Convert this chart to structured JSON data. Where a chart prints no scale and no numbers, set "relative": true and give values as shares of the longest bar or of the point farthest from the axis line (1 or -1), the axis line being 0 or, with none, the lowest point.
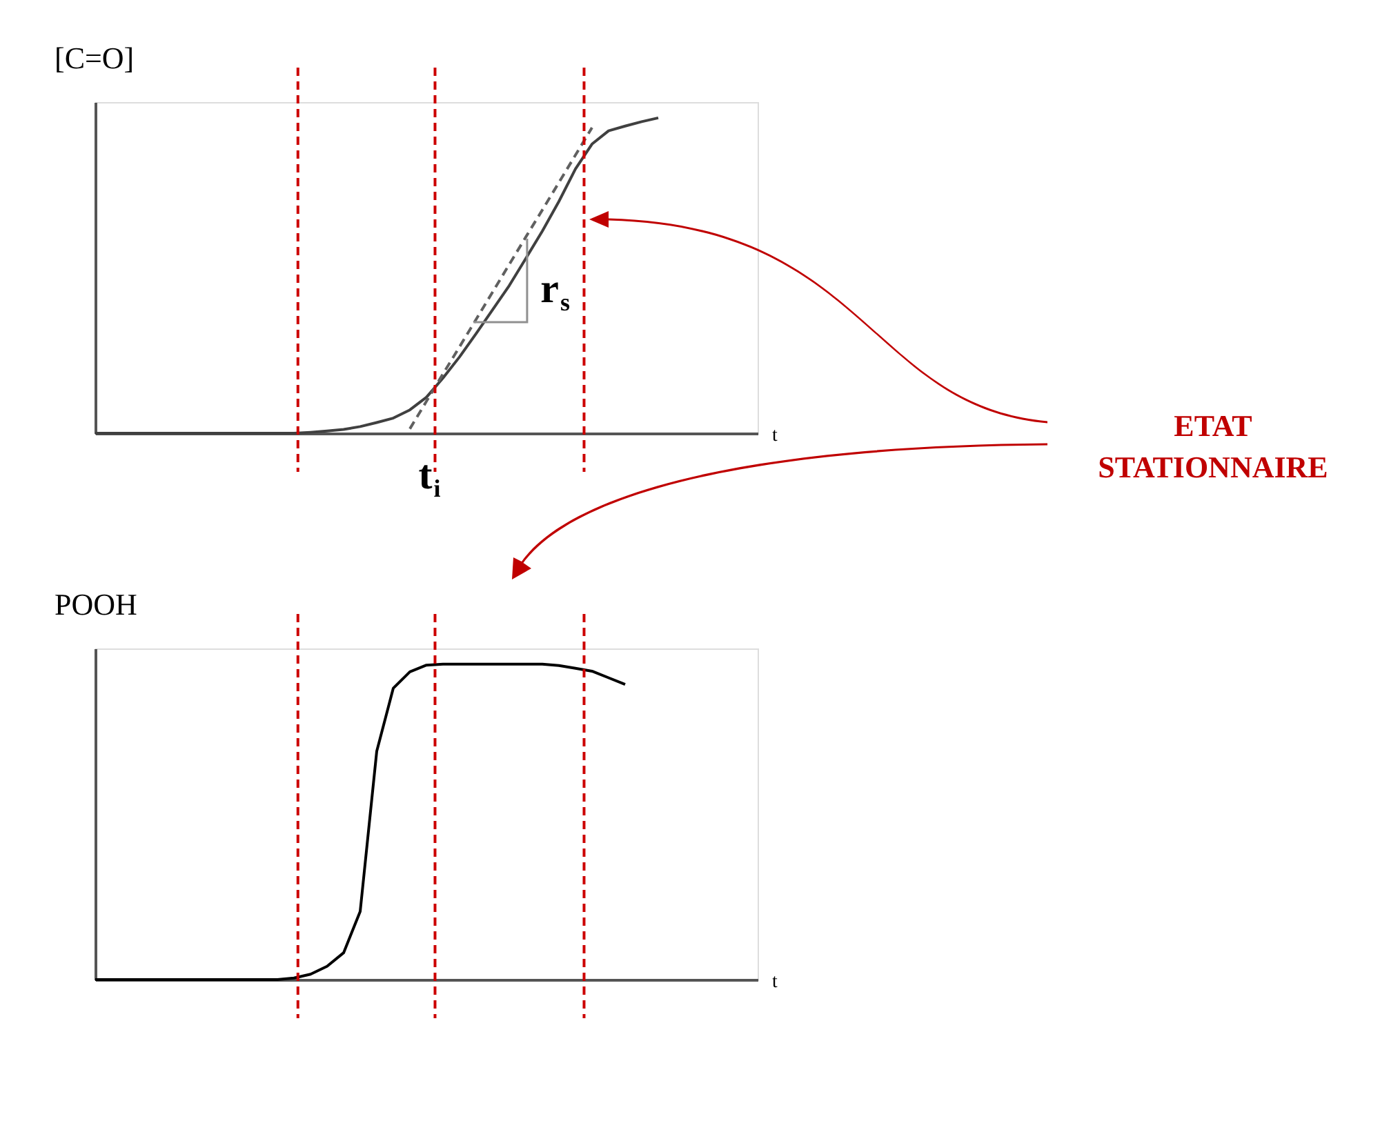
{
  "chart_data": [
    {
      "type": "line",
      "relative": true,
      "ylabel": "[C=O]",
      "xlabel": "t",
      "tick_labels": false,
      "categories": [
        null,
        null,
        null,
        null,
        null,
        null,
        null,
        null,
        null,
        null,
        null,
        null,
        null,
        null,
        null,
        null,
        null,
        null,
        null,
        null,
        null,
        null,
        null,
        null,
        null,
        null,
        null,
        null,
        null,
        null,
        null,
        null,
        null,
        null,
        null,
        null,
        null,
        null,
        null,
        null,
        null
      ],
      "series": [
        {
          "color": "#404040",
          "values": [
            0,
            0,
            0,
            0,
            0,
            0,
            0,
            0,
            0,
            0,
            0,
            0,
            0,
            0.003,
            0.007,
            0.012,
            0.021,
            0.034,
            0.048,
            0.074,
            0.114,
            0.175,
            0.242,
            0.316,
            0.392,
            0.468,
            0.554,
            0.641,
            0.735,
            0.838,
            0.917,
            0.959,
            0.974,
            0.988,
            1,
            null,
            null,
            null,
            null,
            null,
            null
          ]
        },
        {
          "color": "#606060",
          "line_style": "dashed",
          "values": [
            null,
            null,
            null,
            null,
            null,
            null,
            null,
            null,
            null,
            null,
            null,
            null,
            null,
            null,
            null,
            null,
            null,
            null,
            null,
            0.014,
            0.101,
            0.188,
            0.274,
            0.361,
            0.448,
            0.535,
            0.622,
            0.708,
            0.795,
            0.882,
            0.969,
            null,
            null,
            null,
            null,
            null,
            null,
            null,
            null,
            null,
            null
          ]
        }
      ],
      "annotations": [
        "r$_{s}$",
        "t$_{i}$",
        "ETAT STATIONNAIRE"
      ]
    },
    {
      "type": "line",
      "relative": true,
      "ylabel": "POOH",
      "xlabel": "t",
      "tick_labels": false,
      "categories": [
        null,
        null,
        null,
        null,
        null,
        null,
        null,
        null,
        null,
        null,
        null,
        null,
        null,
        null,
        null,
        null,
        null,
        null,
        null,
        null,
        null,
        null,
        null,
        null,
        null,
        null,
        null,
        null,
        null,
        null,
        null,
        null,
        null,
        null,
        null,
        null,
        null,
        null,
        null,
        null,
        null
      ],
      "series": [
        {
          "color": "#000000",
          "values": [
            0,
            0,
            0,
            0,
            0,
            0,
            0,
            0,
            0,
            0,
            0,
            0,
            0.005,
            0.017,
            0.042,
            0.085,
            0.216,
            0.724,
            0.924,
            0.976,
            0.997,
            1,
            1,
            1,
            1,
            1,
            1,
            1,
            0.996,
            0.987,
            0.978,
            0.957,
            0.936,
            null,
            null,
            null,
            null,
            null,
            null,
            null,
            null
          ]
        }
      ]
    }
  ]
}
